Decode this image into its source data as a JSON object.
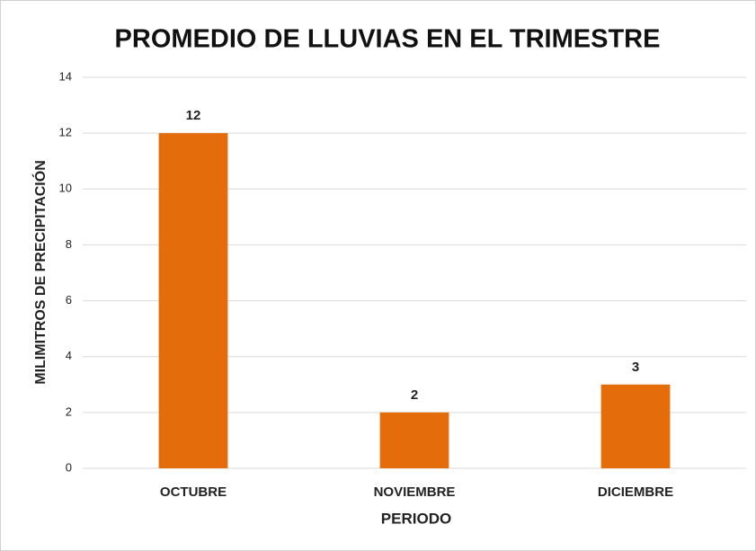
{
  "chart_data": {
    "type": "bar",
    "title": "PROMEDIO DE LLUVIAS EN EL TRIMESTRE",
    "x_label": "PERIODO",
    "y_label": "MILIMITROS DE PRECIPITACIÓN",
    "categories": [
      "OCTUBRE",
      "NOVIEMBRE",
      "DICIEMBRE"
    ],
    "values": [
      12,
      2,
      3
    ],
    "color": "#e46c0a",
    "ylim": [
      0,
      14
    ],
    "yticks": [
      0,
      2,
      4,
      6,
      8,
      10,
      12,
      14
    ],
    "grid": true,
    "data_labels": true
  }
}
